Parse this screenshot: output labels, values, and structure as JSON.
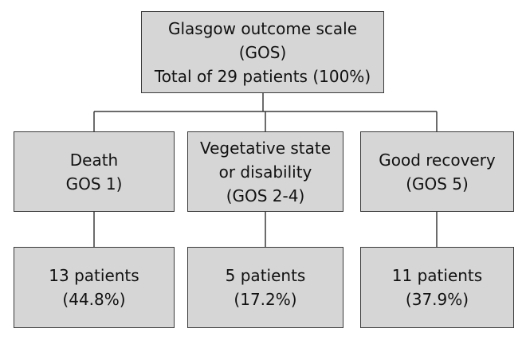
{
  "root": {
    "lines": [
      "Glasgow outcome scale",
      "(GOS)",
      "Total of 29 patients (100%)"
    ]
  },
  "categories": [
    {
      "lines": [
        "Death",
        "GOS 1)"
      ]
    },
    {
      "lines": [
        "Vegetative state",
        "or disability",
        "(GOS 2-4)"
      ]
    },
    {
      "lines": [
        "Good recovery",
        "(GOS 5)"
      ]
    }
  ],
  "results": [
    {
      "lines": [
        "13 patients",
        "(44.8%)"
      ],
      "patients": 13,
      "percent": 44.8
    },
    {
      "lines": [
        "5 patients",
        "(17.2%)"
      ],
      "patients": 5,
      "percent": 17.2
    },
    {
      "lines": [
        "11 patients",
        "(37.9%)"
      ],
      "patients": 11,
      "percent": 37.9
    }
  ],
  "colors": {
    "box_fill": "#d6d6d6",
    "border": "#3a3a3a",
    "text": "#111111"
  }
}
